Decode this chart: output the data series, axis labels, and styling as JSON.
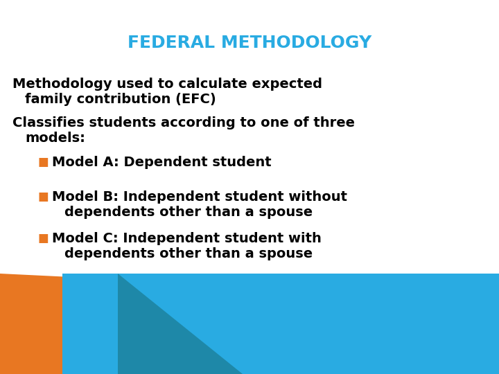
{
  "title": "FEDERAL METHODOLOGY",
  "title_color": "#29ABE2",
  "title_fontsize": 18,
  "background_color": "#FFFFFF",
  "line1": "Methodology used to calculate expected",
  "line2": "    family contribution (EFC)",
  "line3": "Classifies students according to one of three",
  "line4": "    models:",
  "bullet_color": "#E87722",
  "bullet1": "Model A: Dependent student",
  "bullet2_line1": "Model B: Independent student without",
  "bullet2_line2": "    dependents other than a spouse",
  "bullet3_line1": "Model C: Independent student with",
  "bullet3_line2": "    dependents other than a spouse",
  "text_color": "#000000",
  "cyan_color": "#29ABE2",
  "cyan_dark_color": "#1E88A8",
  "orange_color": "#E87722",
  "body_fontsize": 14,
  "bullet_fontsize": 14
}
